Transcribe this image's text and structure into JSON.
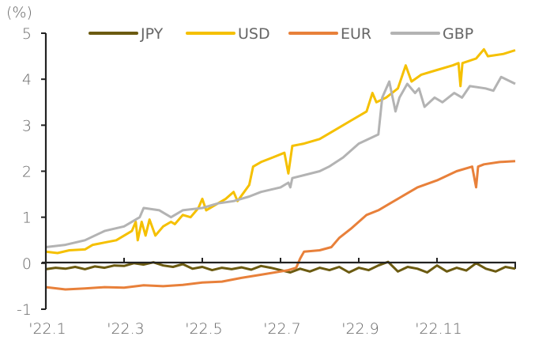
{
  "chart_data": {
    "type": "line",
    "ylabel": "(%)",
    "ylim": [
      -1,
      5
    ],
    "yticks": [
      5,
      4,
      3,
      2,
      1,
      0,
      -1
    ],
    "xlim": [
      0,
      12
    ],
    "xunit": "months since 2022-01-01",
    "xticks": [
      {
        "label": "'22.1",
        "x": 0
      },
      {
        "label": "'22.3",
        "x": 2
      },
      {
        "label": "'22.5",
        "x": 4
      },
      {
        "label": "'22.7",
        "x": 6
      },
      {
        "label": "'22.9",
        "x": 8
      },
      {
        "label": "'22.11",
        "x": 10
      }
    ],
    "legend_position": "top",
    "series": [
      {
        "name": "JPY",
        "color": "#6b5a10",
        "x": [
          0,
          0.25,
          0.5,
          0.75,
          1,
          1.25,
          1.5,
          1.75,
          2,
          2.25,
          2.5,
          2.75,
          3,
          3.25,
          3.5,
          3.75,
          4,
          4.25,
          4.5,
          4.75,
          5,
          5.25,
          5.5,
          5.75,
          6,
          6.25,
          6.5,
          6.75,
          7,
          7.25,
          7.5,
          7.75,
          8,
          8.25,
          8.5,
          8.75,
          9,
          9.25,
          9.5,
          9.75,
          10,
          10.25,
          10.5,
          10.75,
          11,
          11.25,
          11.5,
          11.75,
          12
        ],
        "y": [
          -0.13,
          -0.1,
          -0.12,
          -0.08,
          -0.13,
          -0.07,
          -0.1,
          -0.05,
          -0.06,
          0.0,
          -0.03,
          0.02,
          -0.05,
          -0.08,
          -0.02,
          -0.12,
          -0.08,
          -0.15,
          -0.1,
          -0.13,
          -0.09,
          -0.14,
          -0.06,
          -0.1,
          -0.15,
          -0.2,
          -0.12,
          -0.18,
          -0.1,
          -0.15,
          -0.08,
          -0.2,
          -0.1,
          -0.15,
          -0.05,
          0.03,
          -0.18,
          -0.08,
          -0.12,
          -0.2,
          -0.05,
          -0.18,
          -0.1,
          -0.16,
          0.0,
          -0.12,
          -0.18,
          -0.08,
          -0.12
        ]
      },
      {
        "name": "USD",
        "color": "#f5c000",
        "x": [
          0,
          0.3,
          0.6,
          1.0,
          1.2,
          1.5,
          1.8,
          2.0,
          2.2,
          2.3,
          2.35,
          2.45,
          2.55,
          2.65,
          2.8,
          3.0,
          3.2,
          3.3,
          3.5,
          3.7,
          3.9,
          4.0,
          4.1,
          4.4,
          4.6,
          4.8,
          4.9,
          5.2,
          5.3,
          5.5,
          5.8,
          6.1,
          6.2,
          6.3,
          6.6,
          7.0,
          7.4,
          7.8,
          8.2,
          8.35,
          8.45,
          8.7,
          9.0,
          9.2,
          9.35,
          9.6,
          10.0,
          10.4,
          10.55,
          10.6,
          10.65,
          11.0,
          11.2,
          11.3,
          11.7,
          12
        ],
        "y": [
          0.25,
          0.22,
          0.28,
          0.3,
          0.4,
          0.45,
          0.5,
          0.6,
          0.7,
          0.9,
          0.5,
          0.9,
          0.6,
          0.95,
          0.6,
          0.8,
          0.9,
          0.85,
          1.05,
          1.0,
          1.2,
          1.4,
          1.15,
          1.3,
          1.4,
          1.55,
          1.35,
          1.7,
          2.1,
          2.2,
          2.3,
          2.4,
          1.95,
          2.55,
          2.6,
          2.7,
          2.9,
          3.1,
          3.3,
          3.7,
          3.5,
          3.6,
          3.8,
          4.3,
          3.95,
          4.1,
          4.2,
          4.3,
          4.35,
          3.85,
          4.35,
          4.45,
          4.65,
          4.5,
          4.55,
          4.63
        ]
      },
      {
        "name": "EUR",
        "color": "#e8803a",
        "x": [
          0,
          0.5,
          1,
          1.5,
          2,
          2.5,
          3,
          3.5,
          4,
          4.5,
          5,
          5.5,
          6,
          6.2,
          6.4,
          6.5,
          6.6,
          7,
          7.3,
          7.5,
          7.8,
          8.0,
          8.2,
          8.5,
          8.8,
          9.0,
          9.5,
          10,
          10.5,
          10.9,
          11.0,
          11.05,
          11.2,
          11.6,
          12
        ],
        "y": [
          -0.52,
          -0.57,
          -0.55,
          -0.52,
          -0.53,
          -0.48,
          -0.5,
          -0.47,
          -0.42,
          -0.4,
          -0.32,
          -0.25,
          -0.18,
          -0.15,
          -0.1,
          0.1,
          0.25,
          0.28,
          0.35,
          0.55,
          0.75,
          0.9,
          1.05,
          1.15,
          1.3,
          1.4,
          1.65,
          1.8,
          2.0,
          2.1,
          1.65,
          2.1,
          2.15,
          2.2,
          2.22
        ]
      },
      {
        "name": "GBP",
        "color": "#b3b3b3",
        "x": [
          0,
          0.5,
          1,
          1.5,
          2,
          2.4,
          2.5,
          2.9,
          3.2,
          3.5,
          4,
          4.4,
          4.8,
          5.2,
          5.5,
          6.0,
          6.2,
          6.25,
          6.3,
          7.0,
          7.24,
          7.6,
          8.0,
          8.5,
          8.6,
          8.78,
          8.94,
          9.04,
          9.24,
          9.44,
          9.54,
          9.68,
          9.94,
          10.14,
          10.44,
          10.64,
          10.84,
          11.24,
          11.44,
          11.64,
          12
        ],
        "y": [
          0.35,
          0.4,
          0.5,
          0.7,
          0.8,
          1.0,
          1.2,
          1.15,
          1.0,
          1.15,
          1.2,
          1.3,
          1.35,
          1.45,
          1.55,
          1.65,
          1.75,
          1.65,
          1.85,
          2.0,
          2.1,
          2.3,
          2.6,
          2.8,
          3.6,
          3.95,
          3.3,
          3.6,
          3.9,
          3.7,
          3.8,
          3.4,
          3.6,
          3.5,
          3.7,
          3.6,
          3.85,
          3.8,
          3.75,
          4.05,
          3.9
        ]
      }
    ]
  }
}
